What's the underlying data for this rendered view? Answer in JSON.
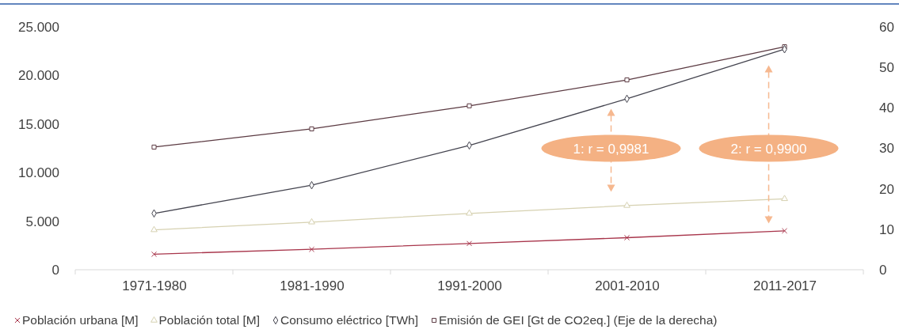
{
  "chart_data": {
    "type": "line",
    "categories": [
      "1971-1980",
      "1981-1990",
      "1991-2000",
      "2001-2010",
      "2011-2017"
    ],
    "ylim": [
      0,
      25000
    ],
    "yticks": [
      {
        "value": 0,
        "label": "0"
      },
      {
        "value": 5000,
        "label": "5.000"
      },
      {
        "value": 10000,
        "label": "10.000"
      },
      {
        "value": 15000,
        "label": "15.000"
      },
      {
        "value": 20000,
        "label": "20.000"
      },
      {
        "value": 25000,
        "label": "25.000"
      }
    ],
    "y2lim": [
      0,
      60
    ],
    "y2ticks": [
      0,
      10,
      20,
      30,
      40,
      50,
      60
    ],
    "grid": false,
    "legend": "bottom",
    "line_style": "solid",
    "series": [
      {
        "name": "Población urbana [M]",
        "color": "#a8354b",
        "marker": "cross",
        "values": [
          1600,
          2100,
          2700,
          3300,
          4000
        ]
      },
      {
        "name": "Población total [M]",
        "color": "#d6d1b1",
        "marker": "triangle",
        "values": [
          4100,
          4900,
          5800,
          6600,
          7300
        ]
      },
      {
        "name": "Consumo eléctrico [TWh]",
        "color": "#44444f",
        "marker": "diamond",
        "values": [
          5800,
          8700,
          12800,
          17600,
          22700
        ]
      },
      {
        "name": "Emisión de GEI [Gt de CO2eq.] (Eje de la derecha)",
        "color": "#5b3a42",
        "marker": "square",
        "axis": "y2",
        "values": [
          30.3,
          34.8,
          40.5,
          46.9,
          55.1
        ]
      }
    ],
    "annotations": [
      "1: r = 0,9981",
      "2: r = 0,9900"
    ]
  }
}
